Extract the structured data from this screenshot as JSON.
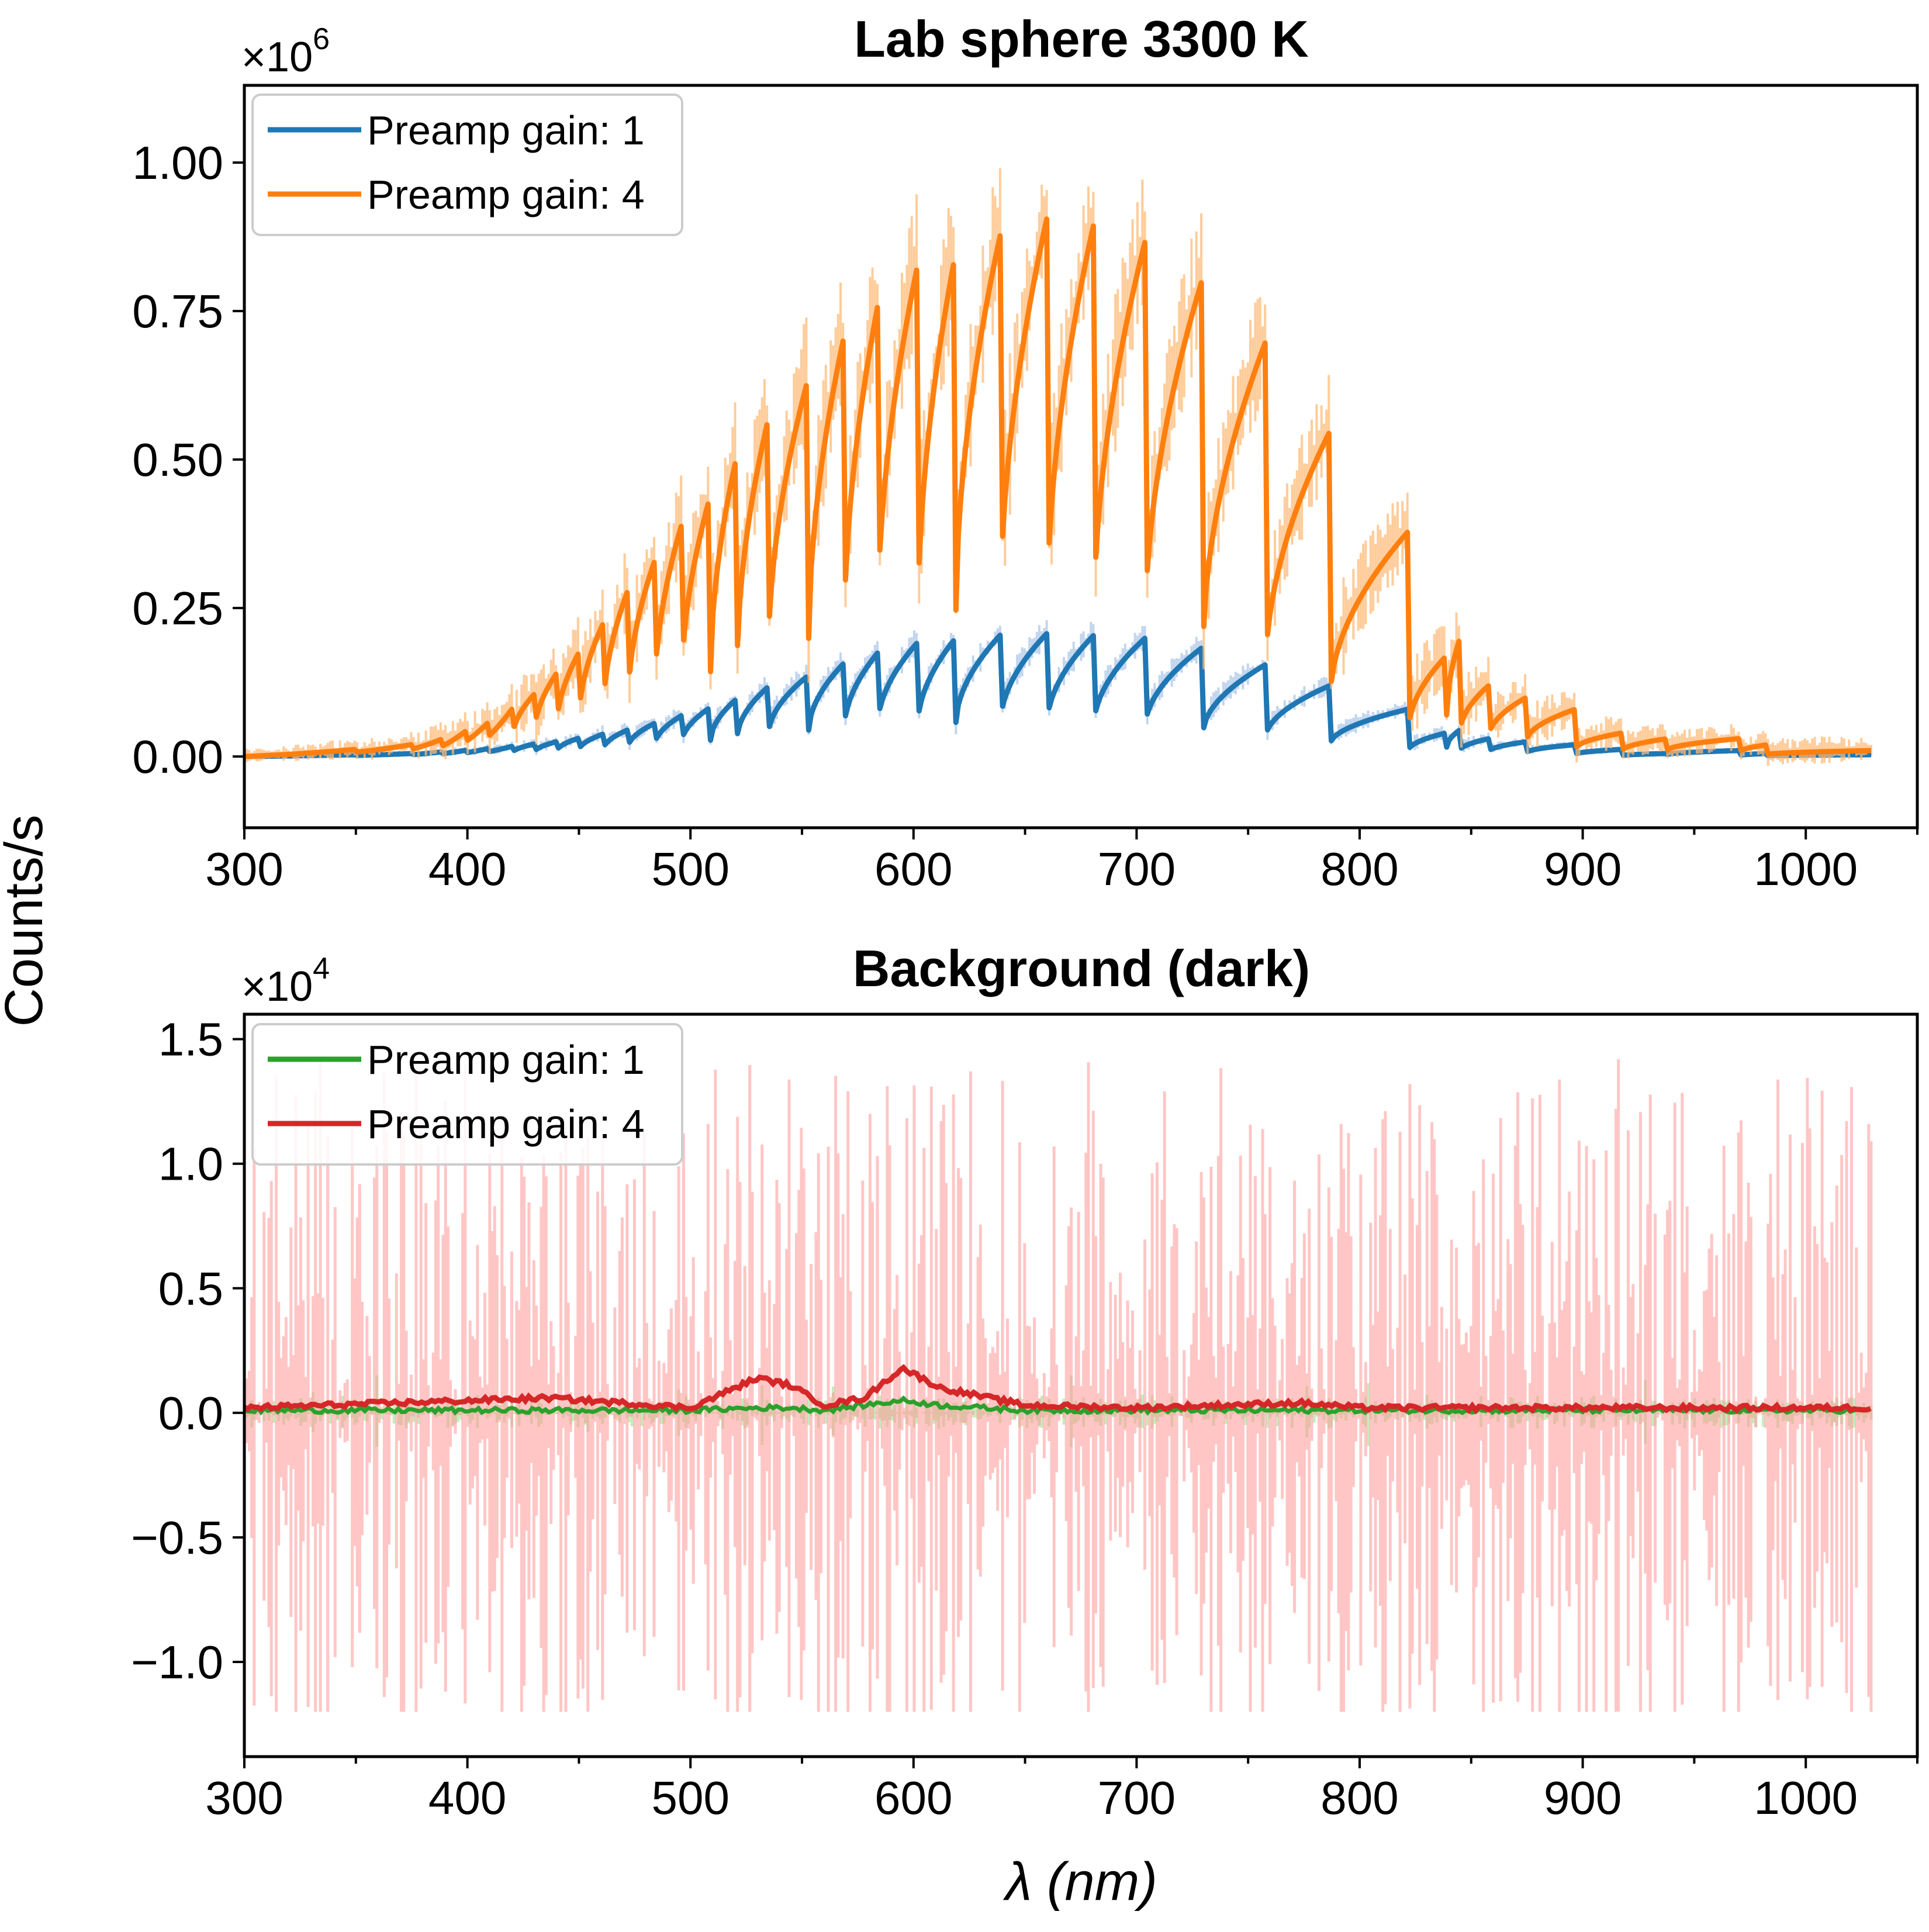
{
  "figure": {
    "ylabel": "Counts/s",
    "xlabel": "λ (nm)"
  },
  "chart_data": [
    {
      "type": "line",
      "title": "Lab sphere 3300 K",
      "y_multiplier_base": "×10",
      "y_multiplier_exp": "6",
      "xlim": [
        300,
        1050
      ],
      "ylim": [
        -0.12,
        1.13
      ],
      "y_unit_scale": 1000000,
      "xticks": [
        300,
        400,
        500,
        600,
        700,
        800,
        900,
        1000
      ],
      "xtick_labels": [
        "300",
        "400",
        "500",
        "600",
        "700",
        "800",
        "900",
        "1000"
      ],
      "yticks": [
        0,
        0.25,
        0.5,
        0.75,
        1.0
      ],
      "ytick_labels": [
        "0.00",
        "0.25",
        "0.50",
        "0.75",
        "1.00"
      ],
      "legend_position": "upper-left",
      "series": [
        {
          "name": "Preamp gain: 1",
          "color": "#1f77b4",
          "band_color": "#aec7e8",
          "x": [
            300,
            350,
            375,
            389,
            400,
            410,
            420,
            430,
            440,
            450,
            461,
            472,
            484,
            496,
            509,
            521,
            535,
            553,
            569,
            584,
            602,
            619,
            639,
            660,
            681,
            704,
            730,
            758,
            787,
            822,
            839,
            845,
            858,
            875,
            897,
            918,
            938,
            970,
            983,
            1030
          ],
          "y": [
            0,
            0.003,
            0.005,
            0.008,
            0.011,
            0.014,
            0.017,
            0.021,
            0.025,
            0.031,
            0.038,
            0.045,
            0.056,
            0.069,
            0.083,
            0.098,
            0.118,
            0.137,
            0.158,
            0.175,
            0.193,
            0.2,
            0.205,
            0.208,
            0.205,
            0.2,
            0.185,
            0.155,
            0.12,
            0.08,
            0.04,
            0.045,
            0.03,
            0.025,
            0.02,
            0.012,
            0.005,
            0.01,
            0.005,
            0.003
          ],
          "band_halfwidth": [
            0.003,
            0.004,
            0.005,
            0.006,
            0.006,
            0.007,
            0.008,
            0.009,
            0.01,
            0.011,
            0.012,
            0.013,
            0.014,
            0.015,
            0.016,
            0.017,
            0.018,
            0.019,
            0.02,
            0.021,
            0.022,
            0.022,
            0.022,
            0.022,
            0.022,
            0.022,
            0.02,
            0.018,
            0.015,
            0.012,
            0.01,
            0.01,
            0.008,
            0.007,
            0.006,
            0.005,
            0.004,
            0.004,
            0.004,
            0.004
          ]
        },
        {
          "name": "Preamp gain: 4",
          "color": "#ff7f0e",
          "band_color": "#ffbb78",
          "x": [
            300,
            350,
            375,
            389,
            400,
            410,
            420,
            430,
            440,
            450,
            461,
            472,
            484,
            496,
            509,
            521,
            535,
            553,
            569,
            584,
            602,
            619,
            639,
            660,
            681,
            704,
            730,
            758,
            787,
            822,
            839,
            845,
            858,
            875,
            897,
            918,
            938,
            970,
            983,
            1030
          ],
          "y": [
            0,
            0.012,
            0.02,
            0.03,
            0.045,
            0.06,
            0.08,
            0.105,
            0.14,
            0.175,
            0.225,
            0.28,
            0.33,
            0.39,
            0.44,
            0.51,
            0.57,
            0.64,
            0.71,
            0.76,
            0.83,
            0.85,
            0.88,
            0.91,
            0.9,
            0.87,
            0.81,
            0.7,
            0.55,
            0.38,
            0.17,
            0.2,
            0.12,
            0.1,
            0.08,
            0.04,
            0.03,
            0.03,
            0.02,
            0.01
          ],
          "band_halfwidth": [
            0.01,
            0.015,
            0.02,
            0.025,
            0.03,
            0.035,
            0.04,
            0.045,
            0.05,
            0.055,
            0.06,
            0.065,
            0.07,
            0.075,
            0.08,
            0.085,
            0.09,
            0.095,
            0.1,
            0.105,
            0.11,
            0.115,
            0.12,
            0.12,
            0.12,
            0.11,
            0.1,
            0.09,
            0.08,
            0.06,
            0.05,
            0.05,
            0.04,
            0.035,
            0.03,
            0.025,
            0.02,
            0.02,
            0.02,
            0.02
          ]
        }
      ]
    },
    {
      "type": "line",
      "title": "Background (dark)",
      "y_multiplier_base": "×10",
      "y_multiplier_exp": "4",
      "xlim": [
        300,
        1050
      ],
      "ylim": [
        -1.38,
        1.6
      ],
      "y_unit_scale": 10000,
      "xticks": [
        300,
        400,
        500,
        600,
        700,
        800,
        900,
        1000
      ],
      "xtick_labels": [
        "300",
        "400",
        "500",
        "600",
        "700",
        "800",
        "900",
        "1000"
      ],
      "yticks": [
        -1.0,
        -0.5,
        0.0,
        0.5,
        1.0,
        1.5
      ],
      "ytick_labels": [
        "−1.0",
        "−0.5",
        "0.0",
        "0.5",
        "1.0",
        "1.5"
      ],
      "legend_position": "upper-left",
      "series": [
        {
          "name": "Preamp gain: 1",
          "color": "#2ca02c",
          "band_color": "#98df8a",
          "x": [
            300,
            400,
            500,
            530,
            545,
            560,
            595,
            612,
            650,
            700,
            800,
            900,
            1000,
            1030
          ],
          "y": [
            0.01,
            0.01,
            0.01,
            0.02,
            0.02,
            0.01,
            0.05,
            0.03,
            0.01,
            0.01,
            0.01,
            0.01,
            0.01,
            0.01
          ],
          "band_range": [
            -0.18,
            0.22
          ],
          "band_extremes": [
            [
              -0.5,
              0.5
            ]
          ]
        },
        {
          "name": "Preamp gain: 4",
          "color": "#d62728",
          "band_color": "#ff9896",
          "x": [
            300,
            437,
            500,
            530,
            545,
            560,
            578,
            595,
            612,
            650,
            700,
            773,
            800,
            900,
            1000,
            1030
          ],
          "y": [
            0.02,
            0.06,
            0.02,
            0.14,
            0.11,
            0.03,
            0.06,
            0.18,
            0.1,
            0.03,
            0.02,
            0.04,
            0.02,
            0.02,
            0.02,
            0.02
          ],
          "band_range": [
            -1.23,
            1.47
          ],
          "band_extremes": [
            [
              -1.16,
              1.12
            ],
            [
              -1.23,
              1.47
            ],
            [
              -1.21,
              1.31
            ]
          ]
        }
      ]
    }
  ]
}
